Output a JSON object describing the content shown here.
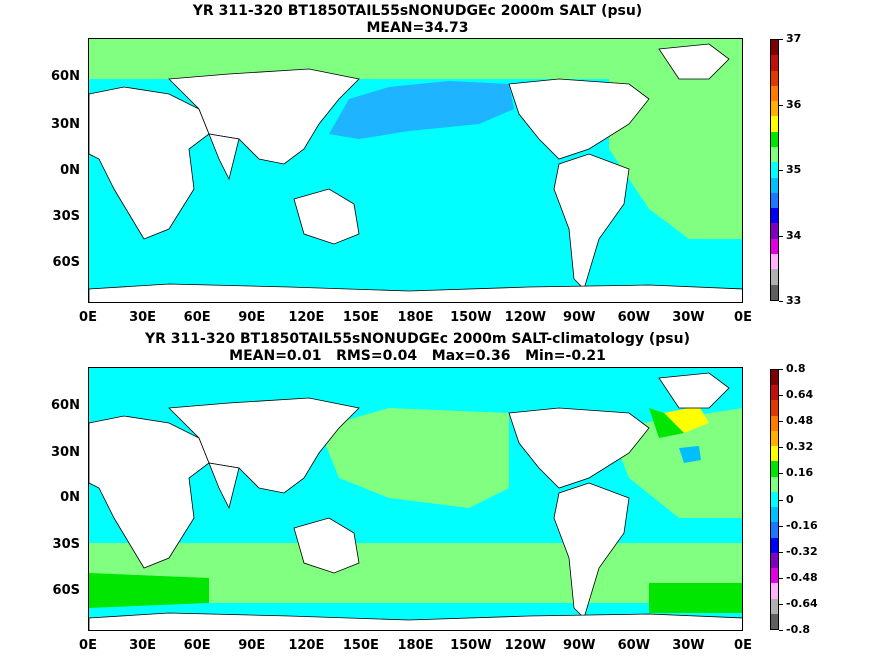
{
  "panel1": {
    "title_line1": "YR 311-320 BT1850TAIL55sNONUDGEc 2000m SALT (psu)",
    "title_line2": "MEAN=34.73",
    "colorbar": {
      "colors": [
        "#7f0000",
        "#bf1010",
        "#e03a00",
        "#ff7a00",
        "#ffb000",
        "#ffff00",
        "#00e600",
        "#80ff80",
        "#00ffff",
        "#00bfff",
        "#1e78ff",
        "#0000ff",
        "#7f00bf",
        "#e000e0",
        "#ffb3ff",
        "#b0b0b0",
        "#606060"
      ],
      "labels": [
        "37",
        "36",
        "35",
        "34",
        "33"
      ]
    }
  },
  "panel2": {
    "title_line1": "YR 311-320 BT1850TAIL55sNONUDGEc 2000m SALT-climatology (psu)",
    "title_line2": "MEAN=0.01   RMS=0.04   Max=0.36   Min=-0.21",
    "colorbar": {
      "colors": [
        "#7f0000",
        "#bf1010",
        "#e03a00",
        "#ff7a00",
        "#ffb000",
        "#ffff00",
        "#00e600",
        "#80ff80",
        "#00ffff",
        "#00bfff",
        "#1e78ff",
        "#0000ff",
        "#7f00bf",
        "#e000e0",
        "#ffb3ff",
        "#b0b0b0",
        "#606060"
      ],
      "labels": [
        "0.8",
        "0.64",
        "0.48",
        "0.32",
        "0.16",
        "0",
        "-0.16",
        "-0.32",
        "-0.48",
        "-0.64",
        "-0.8"
      ]
    }
  },
  "lat_labels": [
    "60N",
    "30N",
    "0N",
    "30S",
    "60S"
  ],
  "lon_labels": [
    "0E",
    "30E",
    "60E",
    "90E",
    "120E",
    "150E",
    "180E",
    "150W",
    "120W",
    "90W",
    "60W",
    "30W",
    "0E"
  ]
}
